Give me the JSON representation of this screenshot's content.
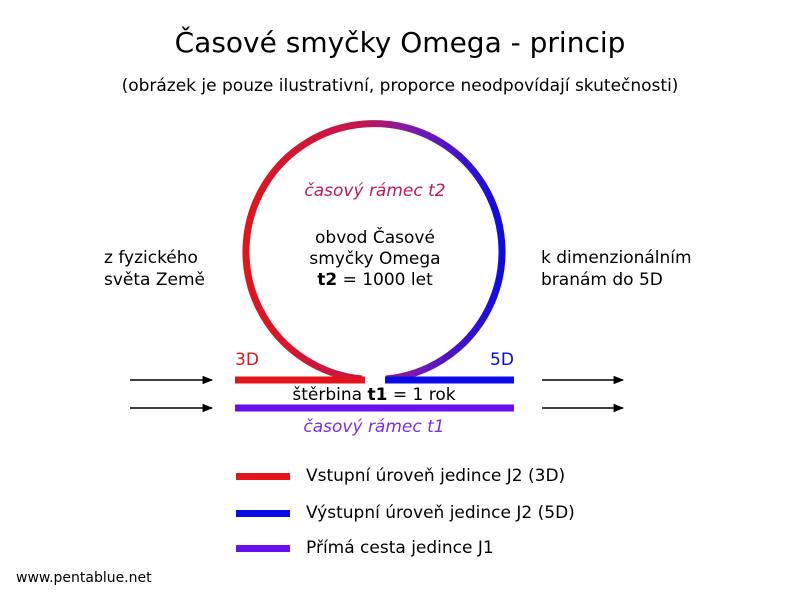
{
  "title": "Časové smyčky Omega - princip",
  "subtitle": "(obrázek je pouze ilustrativní, proporce neodpovídají skutečnosti)",
  "left_text": {
    "line1": "z fyzického",
    "line2": "světa Země"
  },
  "right_text": {
    "line1": "k dimenzionálním",
    "line2": "branám do 5D"
  },
  "loop": {
    "frame_label": "časový rámec t2",
    "perimeter_line1": "obvod Časové",
    "perimeter_line2": "smyčky Omega",
    "perimeter_t": "t2",
    "perimeter_value": " = 1000 let"
  },
  "labels": {
    "left_level": "3D",
    "right_level": "5D"
  },
  "gap": {
    "prefix": "štěrbina ",
    "t": "t1",
    "suffix": " = 1 rok"
  },
  "direct_frame_label": "časový rámec t1",
  "legend": [
    {
      "label": "Vstupní úroveň jedince J2 (3D)",
      "color": "#e3141b"
    },
    {
      "label": "Výstupní úroveň jedince J2 (5D)",
      "color": "#0a0ae6"
    },
    {
      "label": "Přímá cesta jedince J1",
      "color": "#6a10f0"
    }
  ],
  "colors": {
    "red": "#e3141b",
    "blue": "#0a0ae6",
    "violet": "#6a10f0",
    "purple_text": "#7a2fe0"
  },
  "footer": "www.pentablue.net"
}
